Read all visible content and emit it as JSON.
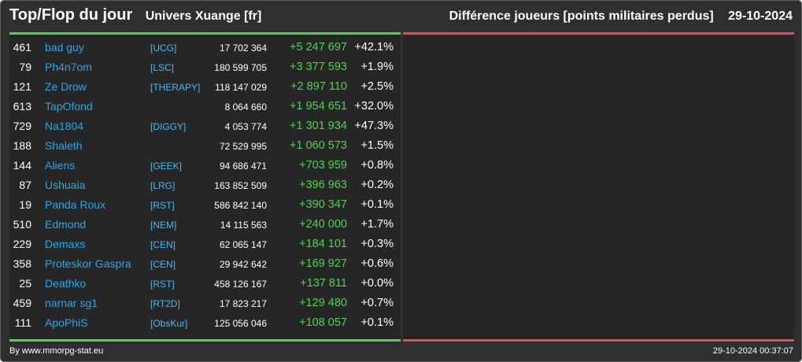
{
  "header": {
    "title": "Top/Flop du jour",
    "universe": "Univers Xuange [fr]",
    "metric": "Différence joueurs [points militaires perdus]",
    "date": "29-10-2024"
  },
  "colors": {
    "background": "#2f2f2f",
    "panel": "#262626",
    "top_line": "#4fd34f",
    "flop_line": "#e05050",
    "name": "#2aa6e8",
    "diff": "#4fd34f"
  },
  "top_rows": [
    {
      "rank": "461",
      "name": "bad guy",
      "alliance": "[UCG]",
      "points": "17 702 364",
      "diff": "+5 247 697",
      "pct": "+42.1%"
    },
    {
      "rank": "79",
      "name": "Ph4n7om",
      "alliance": "[LSC]",
      "points": "180 599 705",
      "diff": "+3 377 593",
      "pct": "+1.9%"
    },
    {
      "rank": "121",
      "name": "Ze Drow",
      "alliance": "[THERAPY]",
      "points": "118 147 029",
      "diff": "+2 897 110",
      "pct": "+2.5%"
    },
    {
      "rank": "613",
      "name": "TapOfond",
      "alliance": "",
      "points": "8 064 660",
      "diff": "+1 954 651",
      "pct": "+32.0%"
    },
    {
      "rank": "729",
      "name": "Na1804",
      "alliance": "[DIGGY]",
      "points": "4 053 774",
      "diff": "+1 301 934",
      "pct": "+47.3%"
    },
    {
      "rank": "188",
      "name": "Shaleth",
      "alliance": "",
      "points": "72 529 995",
      "diff": "+1 060 573",
      "pct": "+1.5%"
    },
    {
      "rank": "144",
      "name": "Aliens",
      "alliance": "[GEEK]",
      "points": "94 686 471",
      "diff": "+703 959",
      "pct": "+0.8%"
    },
    {
      "rank": "87",
      "name": "Ushuaia",
      "alliance": "[LRG]",
      "points": "163 852 509",
      "diff": "+396 963",
      "pct": "+0.2%"
    },
    {
      "rank": "19",
      "name": "Panda Roux",
      "alliance": "[RST]",
      "points": "586 842 140",
      "diff": "+390 347",
      "pct": "+0.1%"
    },
    {
      "rank": "510",
      "name": "Edmond",
      "alliance": "[NEM]",
      "points": "14 115 563",
      "diff": "+240 000",
      "pct": "+1.7%"
    },
    {
      "rank": "229",
      "name": "Demaxs",
      "alliance": "[CEN]",
      "points": "62 065 147",
      "diff": "+184 101",
      "pct": "+0.3%"
    },
    {
      "rank": "358",
      "name": "Proteskor Gaspra",
      "alliance": "[CEN]",
      "points": "29 942 642",
      "diff": "+169 927",
      "pct": "+0.6%"
    },
    {
      "rank": "25",
      "name": "Deathko",
      "alliance": "[RST]",
      "points": "458 126 167",
      "diff": "+137 811",
      "pct": "+0.0%"
    },
    {
      "rank": "459",
      "name": "narnar sg1",
      "alliance": "[RT2D]",
      "points": "17 823 217",
      "diff": "+129 480",
      "pct": "+0.7%"
    },
    {
      "rank": "111",
      "name": "ApoPhiS",
      "alliance": "[ObsKur]",
      "points": "125 056 046",
      "diff": "+108 057",
      "pct": "+0.1%"
    }
  ],
  "footer": {
    "credit": "By www.mmorpg-stat.eu",
    "timestamp": "29-10-2024 00:37:07"
  }
}
